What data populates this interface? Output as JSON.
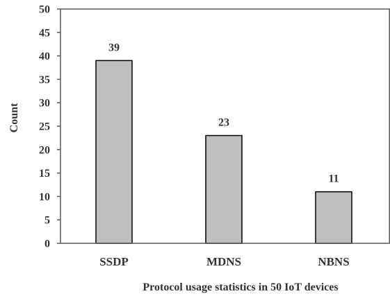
{
  "chart_data": {
    "type": "bar",
    "title": "",
    "xlabel": "Protocol usage statistics in 50 IoT devices",
    "ylabel": "Count",
    "categories": [
      "SSDP",
      "MDNS",
      "NBNS"
    ],
    "values": [
      39,
      23,
      11
    ],
    "data_labels": [
      "39",
      "23",
      "11"
    ],
    "ylim": [
      0,
      50
    ],
    "yticks": [
      0,
      5,
      10,
      15,
      20,
      25,
      30,
      35,
      40,
      45,
      50
    ],
    "grid": false,
    "legend": "none",
    "colors": {
      "bar_fill": "#bfbfbf",
      "bar_stroke": "#000000",
      "axis": "#595959",
      "text": "#333333"
    }
  }
}
